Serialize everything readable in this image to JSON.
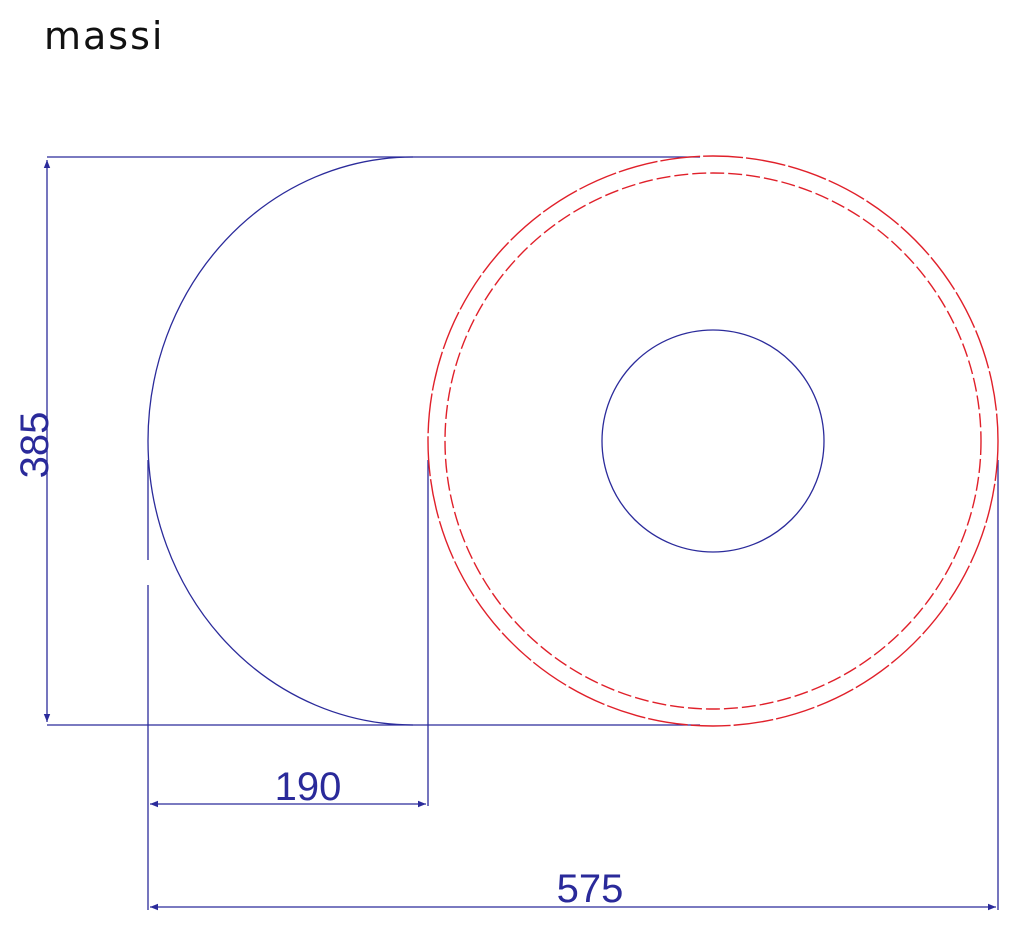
{
  "logo": {
    "text": "massi"
  },
  "dimensions": {
    "height": "385",
    "inner_width": "190",
    "total_width": "575"
  },
  "colors": {
    "outline": "#2b2b9b",
    "bowl": "#e0202a",
    "logo": "#111111"
  }
}
